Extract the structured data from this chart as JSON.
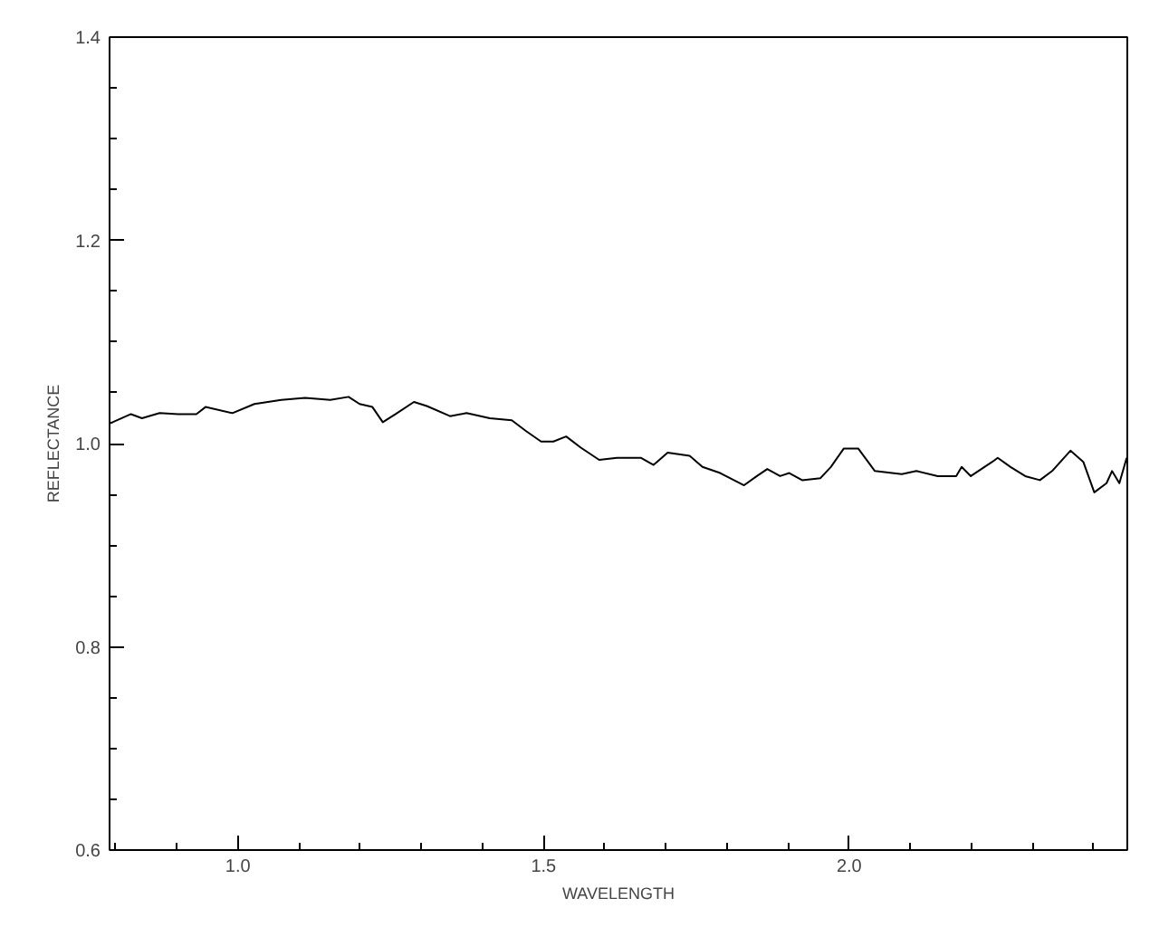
{
  "chart_data": {
    "type": "line",
    "xlabel": "WAVELENGTH",
    "ylabel": "REFLECTANCE",
    "xlim": [
      0.79,
      2.455
    ],
    "ylim": [
      0.6,
      1.4
    ],
    "xticks": [
      {
        "value": 0.8,
        "label": null
      },
      {
        "value": 0.9,
        "label": null
      },
      {
        "value": 1.0,
        "label": "1.0"
      },
      {
        "value": 1.1,
        "label": null
      },
      {
        "value": 1.2,
        "label": null
      },
      {
        "value": 1.3,
        "label": null
      },
      {
        "value": 1.4,
        "label": null
      },
      {
        "value": 1.5,
        "label": "1.5"
      },
      {
        "value": 1.6,
        "label": null
      },
      {
        "value": 1.7,
        "label": null
      },
      {
        "value": 1.8,
        "label": null
      },
      {
        "value": 1.9,
        "label": null
      },
      {
        "value": 2.0,
        "label": "2.0"
      },
      {
        "value": 2.1,
        "label": null
      },
      {
        "value": 2.2,
        "label": null
      },
      {
        "value": 2.3,
        "label": null
      },
      {
        "value": 2.4,
        "label": null
      }
    ],
    "yticks": [
      {
        "value": 0.6,
        "label": "0.6"
      },
      {
        "value": 0.65,
        "label": null
      },
      {
        "value": 0.7,
        "label": null
      },
      {
        "value": 0.75,
        "label": null
      },
      {
        "value": 0.8,
        "label": "0.8"
      },
      {
        "value": 0.85,
        "label": null
      },
      {
        "value": 0.9,
        "label": null
      },
      {
        "value": 0.95,
        "label": null
      },
      {
        "value": 1.0,
        "label": "1.0"
      },
      {
        "value": 1.05,
        "label": null
      },
      {
        "value": 1.1,
        "label": null
      },
      {
        "value": 1.15,
        "label": null
      },
      {
        "value": 1.2,
        "label": "1.2"
      },
      {
        "value": 1.25,
        "label": null
      },
      {
        "value": 1.3,
        "label": null
      },
      {
        "value": 1.35,
        "label": null
      },
      {
        "value": 1.4,
        "label": "1.4"
      }
    ],
    "series": [
      {
        "color": "#000000",
        "x": [
          0.79,
          0.795,
          0.825,
          0.843,
          0.872,
          0.902,
          0.932,
          0.947,
          0.991,
          1.027,
          1.071,
          1.11,
          1.151,
          1.181,
          1.199,
          1.22,
          1.237,
          1.258,
          1.288,
          1.309,
          1.347,
          1.374,
          1.412,
          1.448,
          1.472,
          1.496,
          1.516,
          1.537,
          1.561,
          1.591,
          1.62,
          1.659,
          1.68,
          1.703,
          1.739,
          1.76,
          1.789,
          1.828,
          1.849,
          1.866,
          1.887,
          1.902,
          1.923,
          1.953,
          1.97,
          1.991,
          2.015,
          2.042,
          2.086,
          2.11,
          2.145,
          2.175,
          2.184,
          2.199,
          2.234,
          2.243,
          2.264,
          2.288,
          2.312,
          2.332,
          2.362,
          2.383,
          2.401,
          2.421,
          2.43,
          2.442,
          2.454
        ],
        "values": [
          1.02,
          1.021,
          1.029,
          1.025,
          1.03,
          1.029,
          1.029,
          1.036,
          1.03,
          1.039,
          1.043,
          1.045,
          1.043,
          1.046,
          1.039,
          1.036,
          1.021,
          1.029,
          1.041,
          1.037,
          1.027,
          1.03,
          1.025,
          1.023,
          1.012,
          1.002,
          1.002,
          1.007,
          0.996,
          0.984,
          0.986,
          0.986,
          0.979,
          0.991,
          0.988,
          0.977,
          0.971,
          0.959,
          0.968,
          0.975,
          0.968,
          0.971,
          0.964,
          0.966,
          0.977,
          0.995,
          0.995,
          0.973,
          0.97,
          0.973,
          0.968,
          0.968,
          0.977,
          0.968,
          0.982,
          0.986,
          0.977,
          0.968,
          0.964,
          0.973,
          0.993,
          0.982,
          0.952,
          0.961,
          0.973,
          0.961,
          0.986
        ]
      }
    ]
  }
}
